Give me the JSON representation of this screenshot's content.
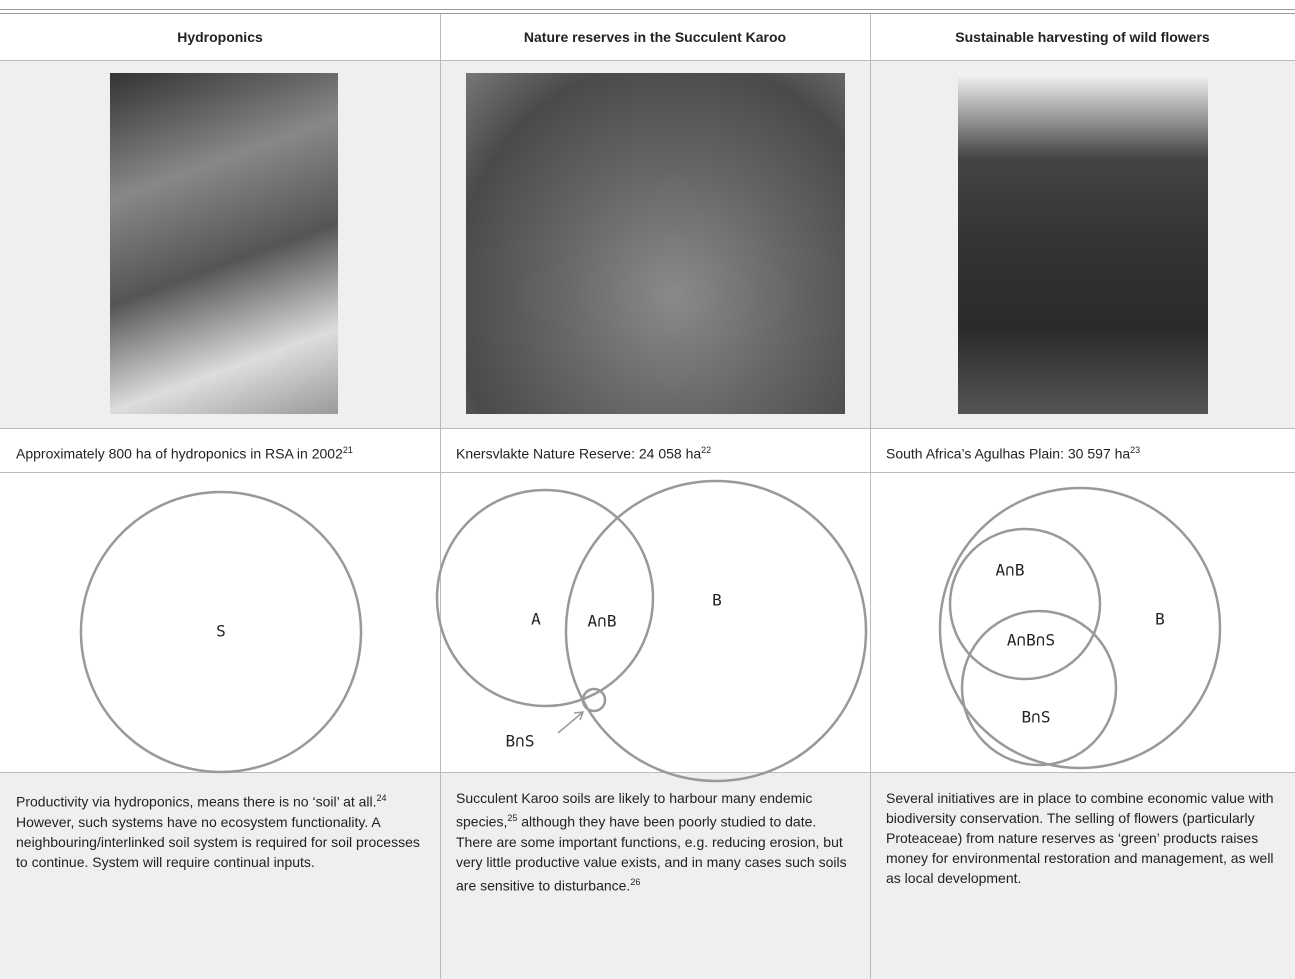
{
  "table": {
    "headers": [
      "Hydroponics",
      "Nature reserves in the Succulent Karoo",
      "Sustainable harvesting of wild flowers"
    ],
    "captions": [
      [
        {
          "text": "Approximately 800 ha of hydroponics in RSA in 2002"
        },
        {
          "sup": "21"
        }
      ],
      [
        {
          "text": "Knersvlakte Nature Reserve: 24 058 ha"
        },
        {
          "sup": "22"
        }
      ],
      [
        {
          "text": "South Africa’s Agulhas Plain: 30 597 ha"
        },
        {
          "sup": "23"
        }
      ]
    ],
    "diagrams": [
      {
        "labels": [
          "S"
        ]
      },
      {
        "labels": [
          "A",
          "A∩B",
          "B",
          "B∩S"
        ]
      },
      {
        "labels": [
          "A∩B",
          "A∩B∩S",
          "B",
          "B∩S"
        ]
      }
    ],
    "descriptions": [
      [
        {
          "text": "Productivity via hydroponics, means there is no ‘soil’ at all."
        },
        {
          "sup": "24"
        },
        {
          "text": " However, such systems have no ecosystem functionality. A neighbouring/interlinked soil system is required for soil processes to continue. System will require continual inputs."
        }
      ],
      [
        {
          "text": "Succulent Karoo soils are likely to harbour many endemic species,"
        },
        {
          "sup": "25"
        },
        {
          "text": " although they have been poorly studied to date. There are some important functions, e.g. reducing erosion, but very little productive value exists, and in many cases such soils are sensitive to disturbance."
        },
        {
          "sup": "26"
        }
      ],
      [
        {
          "text": "Several initiatives are in place to combine economic value with biodiversity conservation. The selling of flowers (particularly Proteaceae) from nature reserves as ‘green’ products raises money for environmental restoration and management, as well as local development."
        }
      ]
    ]
  }
}
